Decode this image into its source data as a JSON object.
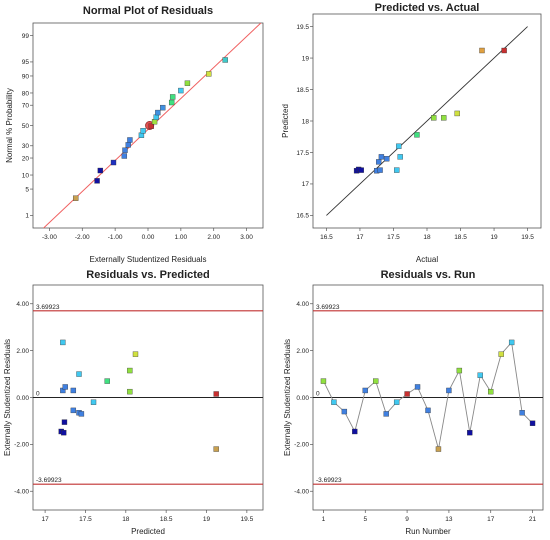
{
  "chart_data": [
    {
      "id": "p1",
      "type": "scatter",
      "title": "Normal Plot of Residuals",
      "xlabel": "Externally Studentized Residuals",
      "ylabel": "Normal % Probability",
      "xlim": [
        -3.5,
        3.5
      ],
      "xticks": [
        -3,
        -2,
        -1,
        0,
        1,
        2,
        3
      ],
      "xtick_labels": [
        "-3.00",
        "-2.00",
        "-1.00",
        "0.00",
        "1.00",
        "2.00",
        "3.00"
      ],
      "yticks": [
        1,
        5,
        10,
        20,
        30,
        50,
        70,
        80,
        90,
        95,
        99
      ],
      "ytick_labels": [
        "1",
        "5",
        "10",
        "20",
        "30",
        "50",
        "70",
        "80",
        "90",
        "95",
        "99"
      ],
      "yscale": "probability",
      "ref_line_color": "#f06060",
      "points": [
        {
          "x": -2.2,
          "y": 3.0,
          "color": "#c8a050"
        },
        {
          "x": -1.55,
          "y": 7.6,
          "color": "#1010a0"
        },
        {
          "x": -1.45,
          "y": 12.2,
          "color": "#1010a0"
        },
        {
          "x": -1.05,
          "y": 16.9,
          "color": "#2030c0"
        },
        {
          "x": -0.72,
          "y": 21.5,
          "color": "#4080e0"
        },
        {
          "x": -0.7,
          "y": 26.1,
          "color": "#4080e0"
        },
        {
          "x": -0.6,
          "y": 30.8,
          "color": "#4080e0"
        },
        {
          "x": -0.55,
          "y": 35.4,
          "color": "#4080e0"
        },
        {
          "x": -0.2,
          "y": 40.0,
          "color": "#40c8f0"
        },
        {
          "x": -0.15,
          "y": 44.6,
          "color": "#40c8f0"
        },
        {
          "x": 0.1,
          "y": 49.3,
          "color": "#c83030"
        },
        {
          "x": 0.2,
          "y": 53.9,
          "color": "#a0e040"
        },
        {
          "x": 0.25,
          "y": 58.5,
          "color": "#40c8f0"
        },
        {
          "x": 0.3,
          "y": 63.1,
          "color": "#4090e0"
        },
        {
          "x": 0.45,
          "y": 67.8,
          "color": "#4090e0"
        },
        {
          "x": 0.72,
          "y": 72.4,
          "color": "#40e080"
        },
        {
          "x": 0.75,
          "y": 77.0,
          "color": "#40e080"
        },
        {
          "x": 1.0,
          "y": 81.7,
          "color": "#40c8f0"
        },
        {
          "x": 1.2,
          "y": 86.3,
          "color": "#90e040"
        },
        {
          "x": 1.85,
          "y": 90.9,
          "color": "#d0e040"
        },
        {
          "x": 2.35,
          "y": 95.5,
          "color": "#40c8c8"
        }
      ],
      "highlight": {
        "x": 0.05,
        "y": 50,
        "color": "#e05050"
      }
    },
    {
      "id": "p2",
      "type": "scatter",
      "title": "Predicted vs. Actual",
      "xlabel": "Actual",
      "ylabel": "Predicted",
      "xlim": [
        16.3,
        19.7
      ],
      "ylim": [
        16.3,
        19.7
      ],
      "xticks": [
        16.5,
        17,
        17.5,
        18,
        18.5,
        19,
        19.5
      ],
      "xtick_labels": [
        "16.5",
        "17",
        "17.5",
        "18",
        "18.5",
        "19",
        "19.5"
      ],
      "yticks": [
        16.5,
        17,
        17.5,
        18,
        18.5,
        19,
        19.5
      ],
      "ytick_labels": [
        "16.5",
        "17",
        "17.5",
        "18",
        "18.5",
        "19",
        "19.5"
      ],
      "line": [
        [
          16.5,
          16.5
        ],
        [
          19.5,
          19.5
        ]
      ],
      "points": [
        {
          "x": 16.95,
          "y": 17.21,
          "color": "#1010a0"
        },
        {
          "x": 16.98,
          "y": 17.23,
          "color": "#1010a0"
        },
        {
          "x": 17.02,
          "y": 17.22,
          "color": "#1010a0"
        },
        {
          "x": 17.25,
          "y": 17.21,
          "color": "#4080e0"
        },
        {
          "x": 17.28,
          "y": 17.35,
          "color": "#4080e0"
        },
        {
          "x": 17.3,
          "y": 17.22,
          "color": "#4080e0"
        },
        {
          "x": 17.32,
          "y": 17.43,
          "color": "#4080e0"
        },
        {
          "x": 17.4,
          "y": 17.4,
          "color": "#4080e0"
        },
        {
          "x": 17.55,
          "y": 17.22,
          "color": "#40c8f0"
        },
        {
          "x": 17.58,
          "y": 17.6,
          "color": "#40c8f0"
        },
        {
          "x": 17.6,
          "y": 17.43,
          "color": "#40c8f0"
        },
        {
          "x": 17.85,
          "y": 17.78,
          "color": "#40e080"
        },
        {
          "x": 18.1,
          "y": 18.05,
          "color": "#90e040"
        },
        {
          "x": 18.25,
          "y": 18.05,
          "color": "#90e040"
        },
        {
          "x": 18.45,
          "y": 18.12,
          "color": "#d0e040"
        },
        {
          "x": 18.82,
          "y": 19.12,
          "color": "#e0a040"
        },
        {
          "x": 19.15,
          "y": 19.12,
          "color": "#c83030"
        }
      ]
    },
    {
      "id": "p3",
      "type": "scatter",
      "title": "Residuals vs. Predicted",
      "xlabel": "Predicted",
      "ylabel": "Externally Studentized Residuals",
      "xlim": [
        16.85,
        19.7
      ],
      "ylim": [
        -4.8,
        4.8
      ],
      "xticks": [
        17,
        17.5,
        18,
        18.5,
        19,
        19.5
      ],
      "xtick_labels": [
        "17",
        "17.5",
        "18",
        "18.5",
        "19",
        "19.5"
      ],
      "yticks": [
        -4,
        -2,
        0,
        2,
        4
      ],
      "ytick_labels": [
        "-4.00",
        "-2.00",
        "0.00",
        "2.00",
        "4.00"
      ],
      "ref_lines": [
        {
          "y": 3.69923,
          "label": "3.69923",
          "color": "#c03030"
        },
        {
          "y": 0,
          "label": "0",
          "color": "#222222"
        },
        {
          "y": -3.69923,
          "label": "-3.69923",
          "color": "#c03030"
        }
      ],
      "points": [
        {
          "x": 17.22,
          "y": 2.35,
          "color": "#40c8f0"
        },
        {
          "x": 17.22,
          "y": 0.3,
          "color": "#4080e0"
        },
        {
          "x": 17.25,
          "y": 0.45,
          "color": "#4080e0"
        },
        {
          "x": 17.2,
          "y": -1.45,
          "color": "#1010a0"
        },
        {
          "x": 17.24,
          "y": -1.05,
          "color": "#1010a0"
        },
        {
          "x": 17.23,
          "y": -1.5,
          "color": "#1010a0"
        },
        {
          "x": 17.35,
          "y": 0.3,
          "color": "#4080e0"
        },
        {
          "x": 17.35,
          "y": -0.55,
          "color": "#4080e0"
        },
        {
          "x": 17.42,
          "y": 1.0,
          "color": "#40c8f0"
        },
        {
          "x": 17.42,
          "y": -0.65,
          "color": "#4080e0"
        },
        {
          "x": 17.45,
          "y": -0.7,
          "color": "#4080e0"
        },
        {
          "x": 17.6,
          "y": -0.2,
          "color": "#40c8f0"
        },
        {
          "x": 17.77,
          "y": 0.7,
          "color": "#40e080"
        },
        {
          "x": 18.05,
          "y": 1.15,
          "color": "#90e040"
        },
        {
          "x": 18.05,
          "y": 0.25,
          "color": "#90e040"
        },
        {
          "x": 18.12,
          "y": 1.85,
          "color": "#d0e040"
        },
        {
          "x": 19.12,
          "y": 0.15,
          "color": "#c83030"
        },
        {
          "x": 19.12,
          "y": -2.2,
          "color": "#c8a050"
        }
      ]
    },
    {
      "id": "p4",
      "type": "line",
      "title": "Residuals vs. Run",
      "xlabel": "Run Number",
      "ylabel": "Externally Studentized Residuals",
      "xlim": [
        0,
        22
      ],
      "ylim": [
        -4.8,
        4.8
      ],
      "xticks": [
        1,
        5,
        9,
        13,
        17,
        21
      ],
      "xtick_labels": [
        "1",
        "5",
        "9",
        "13",
        "17",
        "21"
      ],
      "yticks": [
        -4,
        -2,
        0,
        2,
        4
      ],
      "ytick_labels": [
        "-4.00",
        "-2.00",
        "0.00",
        "2.00",
        "4.00"
      ],
      "ref_lines": [
        {
          "y": 3.69923,
          "label": "3.69923",
          "color": "#c03030"
        },
        {
          "y": 0,
          "label": "0",
          "color": "#222222"
        },
        {
          "y": -3.69923,
          "label": "-3.69923",
          "color": "#c03030"
        }
      ],
      "points": [
        {
          "x": 1,
          "y": 0.7,
          "color": "#90e040"
        },
        {
          "x": 2,
          "y": -0.2,
          "color": "#40c8f0"
        },
        {
          "x": 3,
          "y": -0.6,
          "color": "#4080e0"
        },
        {
          "x": 4,
          "y": -1.45,
          "color": "#1010a0"
        },
        {
          "x": 5,
          "y": 0.3,
          "color": "#4080e0"
        },
        {
          "x": 6,
          "y": 0.7,
          "color": "#90e040"
        },
        {
          "x": 7,
          "y": -0.7,
          "color": "#4080e0"
        },
        {
          "x": 8,
          "y": -0.2,
          "color": "#40c8f0"
        },
        {
          "x": 9,
          "y": 0.15,
          "color": "#c83030"
        },
        {
          "x": 10,
          "y": 0.45,
          "color": "#4080e0"
        },
        {
          "x": 11,
          "y": -0.55,
          "color": "#4080e0"
        },
        {
          "x": 12,
          "y": -2.2,
          "color": "#c8a050"
        },
        {
          "x": 13,
          "y": 0.3,
          "color": "#4080e0"
        },
        {
          "x": 14,
          "y": 1.15,
          "color": "#90e040"
        },
        {
          "x": 15,
          "y": -1.5,
          "color": "#1010a0"
        },
        {
          "x": 16,
          "y": 0.95,
          "color": "#40c8f0"
        },
        {
          "x": 17,
          "y": 0.25,
          "color": "#90e040"
        },
        {
          "x": 18,
          "y": 1.85,
          "color": "#d0e040"
        },
        {
          "x": 19,
          "y": 2.35,
          "color": "#40c8f0"
        },
        {
          "x": 20,
          "y": -0.65,
          "color": "#4080e0"
        },
        {
          "x": 21,
          "y": -1.1,
          "color": "#1010a0"
        }
      ]
    }
  ]
}
